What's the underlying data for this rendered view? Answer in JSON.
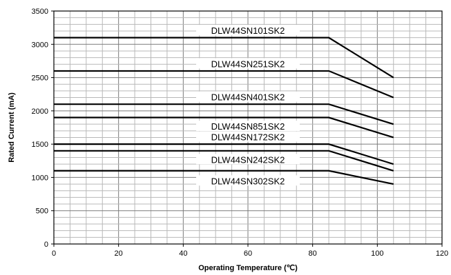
{
  "chart_data": {
    "type": "line",
    "xlabel": "Operating Temperature (℃)",
    "ylabel": "Rated Current (mA)",
    "xlim": [
      0,
      120
    ],
    "ylim": [
      0,
      3500
    ],
    "x_ticks": [
      0,
      20,
      40,
      60,
      80,
      100,
      120
    ],
    "y_ticks": [
      0,
      500,
      1000,
      1500,
      2000,
      2500,
      3000,
      3500
    ],
    "grid": true,
    "legend": "inline labels",
    "series": [
      {
        "name": "DLW44SN101SK2",
        "x": [
          0,
          85,
          105
        ],
        "y": [
          3100,
          3100,
          2500
        ]
      },
      {
        "name": "DLW44SN251SK2",
        "x": [
          0,
          85,
          105
        ],
        "y": [
          2600,
          2600,
          2200
        ]
      },
      {
        "name": "DLW44SN401SK2",
        "x": [
          0,
          85,
          105
        ],
        "y": [
          2100,
          2100,
          1800
        ]
      },
      {
        "name": "DLW44SN851SK2",
        "x": [
          0,
          85,
          105
        ],
        "y": [
          1900,
          1900,
          1600
        ]
      },
      {
        "name": "DLW44SN172SK2",
        "x": [
          0,
          85,
          105
        ],
        "y": [
          1500,
          1500,
          1200
        ]
      },
      {
        "name": "DLW44SN242SK2",
        "x": [
          0,
          85,
          105
        ],
        "y": [
          1400,
          1400,
          1100
        ]
      },
      {
        "name": "DLW44SN302SK2",
        "x": [
          0,
          85,
          105
        ],
        "y": [
          1100,
          1100,
          900
        ]
      }
    ]
  }
}
